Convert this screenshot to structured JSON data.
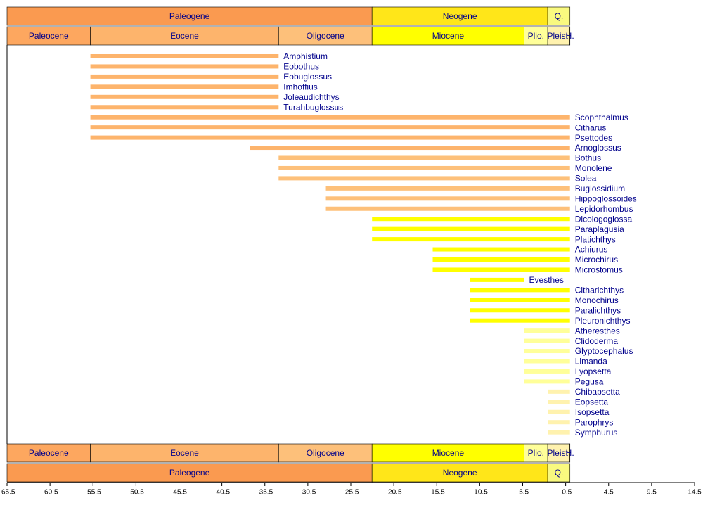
{
  "chart_data": {
    "type": "timeline",
    "xlim": [
      -65.5,
      14.5
    ],
    "xticks": [
      -65.5,
      -60.5,
      -55.5,
      -50.5,
      -45.5,
      -40.5,
      -35.5,
      -30.5,
      -25.5,
      -20.5,
      -15.5,
      -10.5,
      -5.5,
      -0.5,
      4.5,
      9.5,
      14.5
    ],
    "periods": [
      {
        "name": "Paleogene",
        "start": -65.5,
        "end": -23.03,
        "color": "#fa9a50"
      },
      {
        "name": "Neogene",
        "start": -23.03,
        "end": -2.588,
        "color": "#ffe619"
      },
      {
        "name": "Q.",
        "start": -2.588,
        "end": 0,
        "color": "#f9f97f"
      }
    ],
    "epochs": [
      {
        "name": "Paleocene",
        "start": -65.5,
        "end": -55.8,
        "color": "#fda75f"
      },
      {
        "name": "Eocene",
        "start": -55.8,
        "end": -33.9,
        "color": "#fdb46c"
      },
      {
        "name": "Oligocene",
        "start": -33.9,
        "end": -23.03,
        "color": "#fdc07a"
      },
      {
        "name": "Miocene",
        "start": -23.03,
        "end": -5.332,
        "color": "#ffff00"
      },
      {
        "name": "Plio.",
        "start": -5.332,
        "end": -2.588,
        "color": "#ffff99"
      },
      {
        "name": "Pleist.",
        "start": -2.588,
        "end": -0.0117,
        "color": "#fff2ae"
      },
      {
        "name": "H.",
        "start": -0.0117,
        "end": 0,
        "color": "#fef2e0"
      }
    ],
    "taxa": [
      {
        "name": "Amphistium",
        "start": -55.8,
        "end": -33.9,
        "color": "#fdb46c"
      },
      {
        "name": "Eobothus",
        "start": -55.8,
        "end": -33.9,
        "color": "#fdb46c"
      },
      {
        "name": "Eobuglossus",
        "start": -55.8,
        "end": -33.9,
        "color": "#fdb46c"
      },
      {
        "name": "Imhoffius",
        "start": -55.8,
        "end": -33.9,
        "color": "#fdb46c"
      },
      {
        "name": "Joleaudichthys",
        "start": -55.8,
        "end": -33.9,
        "color": "#fdb46c"
      },
      {
        "name": "Turahbuglossus",
        "start": -55.8,
        "end": -33.9,
        "color": "#fdb46c"
      },
      {
        "name": "Scophthalmus",
        "start": -55.8,
        "end": 0,
        "color": "#fdb46c"
      },
      {
        "name": "Citharus",
        "start": -55.8,
        "end": 0,
        "color": "#fdb46c"
      },
      {
        "name": "Psettodes",
        "start": -55.8,
        "end": 0,
        "color": "#fdb46c"
      },
      {
        "name": "Arnoglossus",
        "start": -37.2,
        "end": 0,
        "color": "#fdb46c"
      },
      {
        "name": "Bothus",
        "start": -33.9,
        "end": 0,
        "color": "#fdc07a"
      },
      {
        "name": "Monolene",
        "start": -33.9,
        "end": 0,
        "color": "#fdc07a"
      },
      {
        "name": "Solea",
        "start": -33.9,
        "end": 0,
        "color": "#fdc07a"
      },
      {
        "name": "Buglossidium",
        "start": -28.4,
        "end": 0,
        "color": "#fdc07a"
      },
      {
        "name": "Hippoglossoides",
        "start": -28.4,
        "end": 0,
        "color": "#fdc07a"
      },
      {
        "name": "Lepidorhombus",
        "start": -28.4,
        "end": 0,
        "color": "#fdc07a"
      },
      {
        "name": "Dicologoglossa",
        "start": -23.03,
        "end": 0,
        "color": "#ffff00"
      },
      {
        "name": "Paraplagusia",
        "start": -23.03,
        "end": 0,
        "color": "#ffff00"
      },
      {
        "name": "Platichthys",
        "start": -23.03,
        "end": 0,
        "color": "#ffff00"
      },
      {
        "name": "Achiurus",
        "start": -15.97,
        "end": 0,
        "color": "#ffff00"
      },
      {
        "name": "Microchirus",
        "start": -15.97,
        "end": 0,
        "color": "#ffff00"
      },
      {
        "name": "Microstomus",
        "start": -15.97,
        "end": 0,
        "color": "#ffff00"
      },
      {
        "name": "Evesthes",
        "start": -11.608,
        "end": -5.332,
        "color": "#ffff00"
      },
      {
        "name": "Citharichthys",
        "start": -11.608,
        "end": 0,
        "color": "#ffff00"
      },
      {
        "name": "Monochirus",
        "start": -11.608,
        "end": 0,
        "color": "#ffff00"
      },
      {
        "name": "Paralichthys",
        "start": -11.608,
        "end": 0,
        "color": "#ffff00"
      },
      {
        "name": "Pleuronichthys",
        "start": -11.608,
        "end": 0,
        "color": "#ffff00"
      },
      {
        "name": "Atheresthes",
        "start": -5.332,
        "end": 0,
        "color": "#ffff99"
      },
      {
        "name": "Clidoderma",
        "start": -5.332,
        "end": 0,
        "color": "#ffff99"
      },
      {
        "name": "Glyptocephalus",
        "start": -5.332,
        "end": 0,
        "color": "#ffff99"
      },
      {
        "name": "Limanda",
        "start": -5.332,
        "end": 0,
        "color": "#ffff99"
      },
      {
        "name": "Lyopsetta",
        "start": -5.332,
        "end": 0,
        "color": "#ffff99"
      },
      {
        "name": "Pegusa",
        "start": -5.332,
        "end": 0,
        "color": "#ffff99"
      },
      {
        "name": "Chibapsetta",
        "start": -2.588,
        "end": 0,
        "color": "#fff2ae"
      },
      {
        "name": "Eopsetta",
        "start": -2.588,
        "end": 0,
        "color": "#fff2ae"
      },
      {
        "name": "Isopsetta",
        "start": -2.588,
        "end": 0,
        "color": "#fff2ae"
      },
      {
        "name": "Parophrys",
        "start": -2.588,
        "end": 0,
        "color": "#fff2ae"
      },
      {
        "name": "Symphurus",
        "start": -2.588,
        "end": 0,
        "color": "#fff2ae"
      }
    ]
  }
}
